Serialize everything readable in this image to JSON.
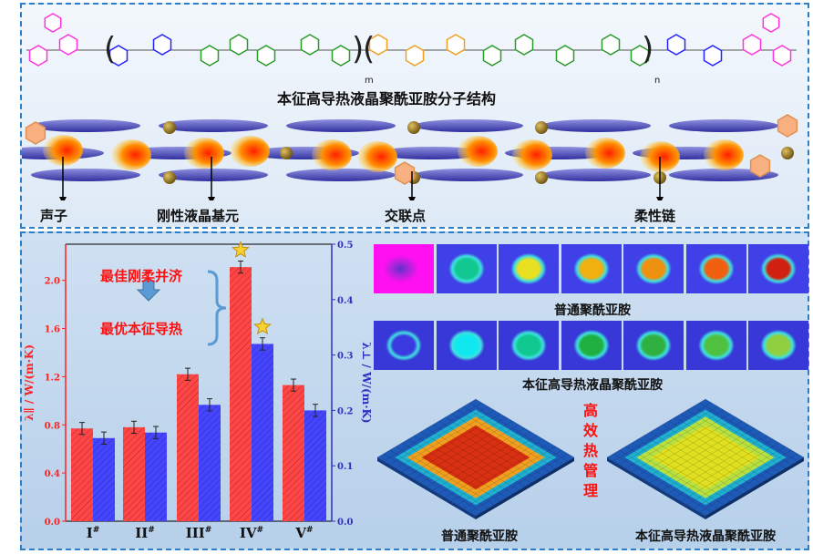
{
  "top": {
    "structure_title": "本征高导热液晶聚酰亚胺分子结构",
    "subscript_m": "m",
    "subscript_n": "n",
    "labels": {
      "phonon": "声子",
      "rigid_mesogen": "刚性液晶基元",
      "crosslink": "交联点",
      "flexible_chain": "柔性链"
    },
    "colors": {
      "end_group": "#ff33dd",
      "ether_diamine": "#2222ff",
      "dianhydride": "#2a9a2a",
      "mesogen": "#f0a020"
    }
  },
  "annotation": {
    "line1": "最佳刚柔并济",
    "line2": "最优本征导热"
  },
  "thermal": {
    "row1_caption": "普通聚酰亚胺",
    "row2_caption": "本征高导热液晶聚酰亚胺",
    "row1_core_colors": [
      "#5a1fd0",
      "#10c890",
      "#e8e020",
      "#f0b010",
      "#f09010",
      "#f06010",
      "#d02010"
    ],
    "row2_core_colors": [
      "#3a3ae0",
      "#10e8f0",
      "#10c890",
      "#20b040",
      "#30b040",
      "#50c040",
      "#90d040"
    ],
    "vertical_text": "高效热管理",
    "left_caption": "普通聚酰亚胺",
    "right_caption": "本征高导热液晶聚酰亚胺"
  },
  "chart_data": {
    "type": "bar",
    "categories": [
      "I#",
      "II#",
      "III#",
      "IV#",
      "V#"
    ],
    "category_base": [
      "I",
      "II",
      "III",
      "IV",
      "V"
    ],
    "category_sup": "#",
    "ylabel_left": "λ∥ / W/(m·K)",
    "ylabel_right": "λ⊥ / W/(m·K)",
    "ylim_left": [
      0,
      2.3
    ],
    "ylim_right": [
      0,
      0.5
    ],
    "yticks_left": [
      "0.0",
      "0.4",
      "0.8",
      "1.2",
      "1.6",
      "2.0"
    ],
    "yticks_right": [
      "0.0",
      "0.1",
      "0.2",
      "0.3",
      "0.4",
      "0.5"
    ],
    "series": [
      {
        "axis": "left",
        "color": "#ff4545",
        "values": [
          0.77,
          0.78,
          1.22,
          2.11,
          1.13
        ],
        "errors": [
          0.05,
          0.05,
          0.05,
          0.05,
          0.05
        ]
      },
      {
        "axis": "right",
        "color": "#4545ff",
        "values": [
          0.15,
          0.16,
          0.21,
          0.32,
          0.2
        ],
        "errors": [
          0.011,
          0.011,
          0.011,
          0.011,
          0.011
        ]
      }
    ],
    "highlight": "IV#",
    "grid": false
  }
}
